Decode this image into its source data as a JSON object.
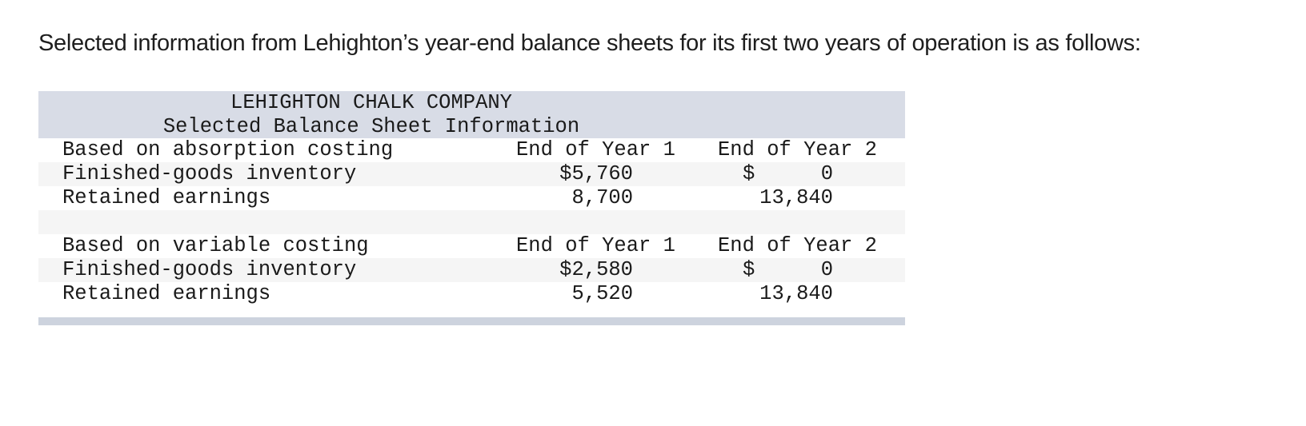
{
  "intro_text": "Selected information from Lehighton’s year-end balance sheets for its first two years of operation is as follows:",
  "table": {
    "title": "LEHIGHTON CHALK COMPANY",
    "subtitle": "Selected Balance Sheet Information",
    "sections": [
      {
        "heading": "Based on absorption costing",
        "col1_header": "End of Year 1",
        "col2_header": "End of Year 2",
        "rows": [
          {
            "label": "Finished-goods inventory",
            "year1": "$5,760",
            "year2_symbol": "$",
            "year2": "0"
          },
          {
            "label": "Retained earnings",
            "year1": "8,700",
            "year2_symbol": "",
            "year2": "13,840"
          }
        ]
      },
      {
        "heading": "Based on variable costing",
        "col1_header": "End of Year 1",
        "col2_header": "End of Year 2",
        "rows": [
          {
            "label": "Finished-goods inventory",
            "year1": "$2,580",
            "year2_symbol": "$",
            "year2": "0"
          },
          {
            "label": "Retained earnings",
            "year1": "5,520",
            "year2_symbol": "",
            "year2": "13,840"
          }
        ]
      }
    ]
  },
  "colors": {
    "header_band": "#d8dce6",
    "alt_row": "#f5f5f5",
    "footer_bar": "#cdd3de"
  }
}
